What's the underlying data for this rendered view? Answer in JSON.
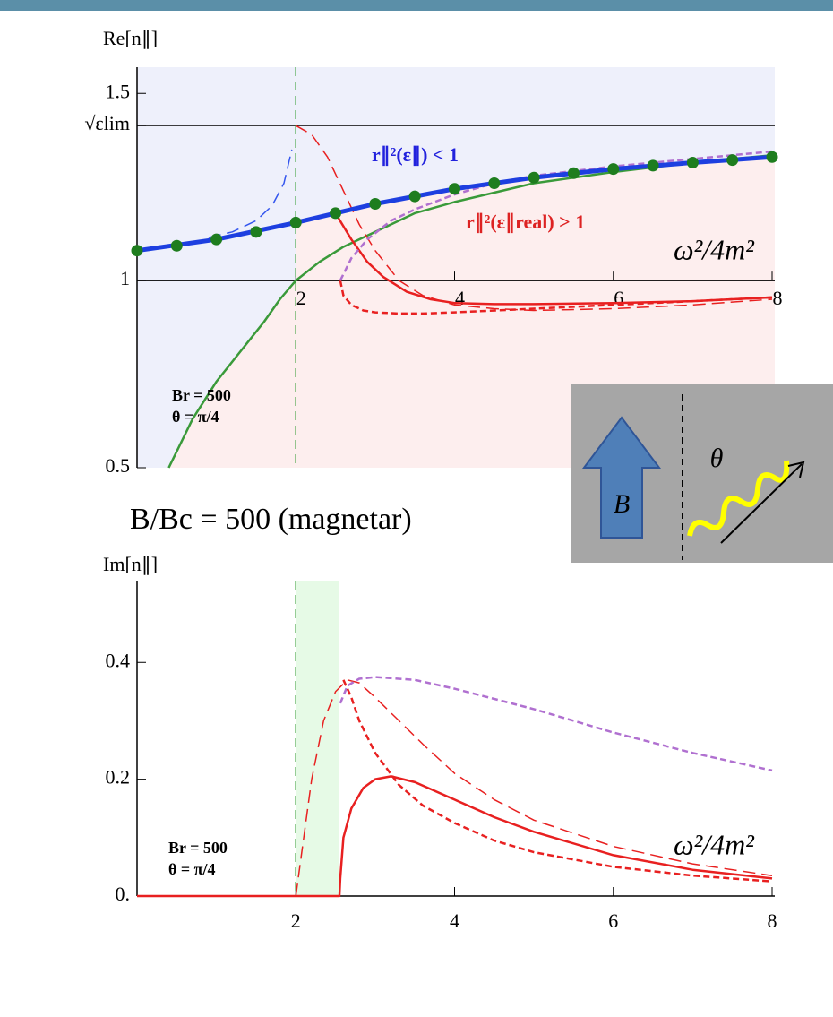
{
  "chart_data": [
    {
      "type": "line",
      "axis_title": "Re[n∥]",
      "xlim": [
        0,
        8
      ],
      "ylim": [
        0.5,
        1.57
      ],
      "xticks": [
        2,
        4,
        6,
        8
      ],
      "yticks": [
        0.5,
        1,
        {
          "value": 1.414,
          "label": "√εlim"
        },
        1.5
      ],
      "x_axis_crossing": 1,
      "vline": 2,
      "vline_color": "#2e9b2e",
      "shaded_regions": true,
      "series": [
        {
          "color": "#3a9a3a",
          "style": "solid",
          "x": [
            0.4,
            0.7,
            1,
            1.3,
            1.6,
            1.8,
            2,
            2.3,
            2.6,
            3,
            3.5,
            4,
            5,
            6,
            7,
            8
          ],
          "values": [
            0.5,
            0.63,
            0.73,
            0.81,
            0.89,
            0.95,
            1.0,
            1.05,
            1.09,
            1.13,
            1.18,
            1.21,
            1.26,
            1.29,
            1.315,
            1.335
          ]
        },
        {
          "color": "#3355ee",
          "style": "long-dash",
          "x": [
            0.9,
            1.2,
            1.5,
            1.7,
            1.85,
            1.95
          ],
          "values": [
            1.115,
            1.13,
            1.16,
            1.2,
            1.26,
            1.35
          ]
        },
        {
          "color": "#e82020",
          "style": "long-dash",
          "x": [
            2,
            2.2,
            2.4,
            2.6,
            2.8,
            3,
            3.3,
            3.6,
            4,
            4.5,
            5,
            6,
            7,
            8
          ],
          "values": [
            1.414,
            1.39,
            1.33,
            1.24,
            1.15,
            1.08,
            1.0,
            0.96,
            0.935,
            0.925,
            0.92,
            0.925,
            0.935,
            0.95
          ]
        },
        {
          "color": "#e82020",
          "style": "solid",
          "x": [
            2.5,
            2.7,
            2.9,
            3.1,
            3.4,
            3.7,
            4,
            4.5,
            5,
            6,
            7,
            8
          ],
          "values": [
            1.18,
            1.11,
            1.05,
            1.01,
            0.97,
            0.95,
            0.94,
            0.937,
            0.937,
            0.94,
            0.945,
            0.955
          ]
        },
        {
          "color": "#e82020",
          "style": "short-dash",
          "x": [
            2.56,
            2.6,
            2.7,
            2.85,
            3,
            3.3,
            3.6,
            4,
            5,
            6,
            7,
            8
          ],
          "values": [
            1.0,
            0.96,
            0.935,
            0.92,
            0.915,
            0.912,
            0.912,
            0.915,
            0.925,
            0.935,
            0.945,
            0.955
          ]
        },
        {
          "color": "#b070d0",
          "style": "short-dash",
          "x": [
            2.56,
            2.7,
            2.9,
            3.2,
            3.5,
            4,
            4.5,
            5,
            6,
            7,
            8
          ],
          "values": [
            1.0,
            1.06,
            1.11,
            1.16,
            1.19,
            1.23,
            1.26,
            1.28,
            1.305,
            1.325,
            1.345
          ]
        },
        {
          "color": "#1d3fe0",
          "style": "thick",
          "x": [
            0,
            1,
            2,
            3,
            4,
            5,
            6,
            7,
            8
          ],
          "values": [
            1.08,
            1.11,
            1.155,
            1.205,
            1.245,
            1.275,
            1.298,
            1.315,
            1.33
          ]
        },
        {
          "color": "#1e7d1e",
          "style": "markers",
          "x": [
            0,
            0.5,
            1,
            1.5,
            2,
            2.5,
            3,
            3.5,
            4,
            4.5,
            5,
            5.5,
            6,
            6.5,
            7,
            7.5,
            8
          ],
          "values": [
            1.08,
            1.093,
            1.11,
            1.13,
            1.155,
            1.18,
            1.205,
            1.225,
            1.245,
            1.26,
            1.275,
            1.287,
            1.298,
            1.307,
            1.315,
            1.322,
            1.33
          ]
        }
      ],
      "annotations": [
        {
          "text": "r∥²(ε∥) < 1",
          "color": "#2222dd"
        },
        {
          "text": "r∥²(ε∥real) > 1",
          "color": "#dd2222"
        },
        {
          "text": "ω²/4m²",
          "color": "#000000"
        },
        {
          "text": "Br = 500",
          "color": "#000000"
        },
        {
          "text": "θ = π/4",
          "color": "#000000"
        }
      ]
    },
    {
      "type": "line",
      "axis_title": "Im[n∥]",
      "xlim": [
        0,
        8
      ],
      "ylim": [
        0,
        0.54
      ],
      "xticks": [
        2,
        4,
        6,
        8
      ],
      "yticks": [
        {
          "value": 0,
          "label": "0."
        },
        0.2,
        0.4
      ],
      "x_axis_crossing": 0,
      "vline": 2,
      "vline_color": "#2e9b2e",
      "band": [
        2,
        2.55
      ],
      "band_color": "#e6fae6",
      "series": [
        {
          "color": "#e82020",
          "style": "long-dash",
          "x": [
            2,
            2.1,
            2.2,
            2.35,
            2.5,
            2.65,
            2.8,
            3,
            3.3,
            3.6,
            4,
            4.5,
            5,
            6,
            7,
            8
          ],
          "values": [
            0,
            0.1,
            0.2,
            0.3,
            0.35,
            0.37,
            0.365,
            0.34,
            0.3,
            0.26,
            0.21,
            0.165,
            0.13,
            0.085,
            0.055,
            0.035
          ]
        },
        {
          "color": "#b070d0",
          "style": "short-dash",
          "x": [
            2.56,
            2.65,
            2.8,
            3,
            3.5,
            4,
            5,
            6,
            7,
            8
          ],
          "values": [
            0.33,
            0.36,
            0.372,
            0.375,
            0.37,
            0.355,
            0.32,
            0.28,
            0.245,
            0.215
          ]
        },
        {
          "color": "#e82020",
          "style": "short-dash",
          "x": [
            2.6,
            2.7,
            2.8,
            3,
            3.3,
            3.6,
            4,
            4.5,
            5,
            6,
            7,
            8
          ],
          "values": [
            0.37,
            0.34,
            0.3,
            0.245,
            0.19,
            0.155,
            0.125,
            0.095,
            0.075,
            0.05,
            0.035,
            0.025
          ]
        },
        {
          "color": "#e82020",
          "style": "solid",
          "x": [
            0,
            2.55,
            2.56,
            2.6,
            2.7,
            2.85,
            3,
            3.2,
            3.5,
            4,
            4.5,
            5,
            6,
            7,
            8
          ],
          "values": [
            0,
            0,
            0.03,
            0.1,
            0.15,
            0.185,
            0.2,
            0.205,
            0.195,
            0.165,
            0.135,
            0.11,
            0.07,
            0.045,
            0.03
          ]
        }
      ],
      "annotations": [
        {
          "text": "Br = 500",
          "color": "#000000"
        },
        {
          "text": "θ = π/4",
          "color": "#000000"
        },
        {
          "text": "ω²/4m²",
          "color": "#000000"
        }
      ]
    }
  ],
  "caption": "B/Bc = 500 (magnetar)",
  "inset": {
    "field_label": "B",
    "angle_label": "θ"
  }
}
